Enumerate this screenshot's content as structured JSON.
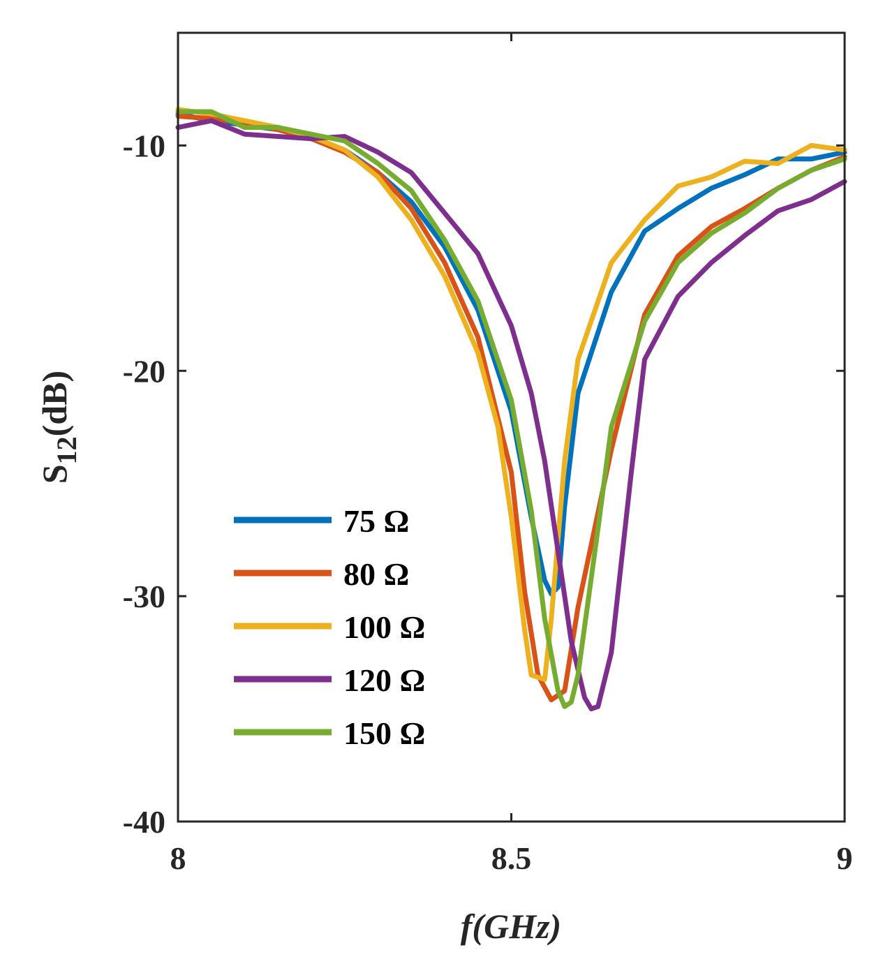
{
  "chart_data": {
    "type": "line",
    "xlabel": "f(GHz)",
    "ylabel": {
      "main": "S",
      "sub": "12",
      "unit": "(dB)"
    },
    "xlim": [
      8,
      9
    ],
    "ylim": [
      -40,
      -5
    ],
    "xticks": [
      8,
      8.5,
      9
    ],
    "xtick_labels": [
      "8",
      "8.5",
      "9"
    ],
    "yticks": [
      -10,
      -20,
      -30,
      -40
    ],
    "ytick_labels": [
      "-10",
      "-20",
      "-30",
      "-40"
    ],
    "grid": false,
    "legend_position": "lower-left",
    "series": [
      {
        "name": "75 Ω",
        "color": "#0072BD",
        "x": [
          8.0,
          8.05,
          8.1,
          8.15,
          8.2,
          8.25,
          8.3,
          8.35,
          8.4,
          8.45,
          8.5,
          8.53,
          8.55,
          8.56,
          8.57,
          8.58,
          8.6,
          8.65,
          8.7,
          8.75,
          8.8,
          8.85,
          8.9,
          8.95,
          9.0
        ],
        "y": [
          -8.6,
          -8.9,
          -9.1,
          -9.3,
          -9.7,
          -10.2,
          -11.2,
          -12.5,
          -14.5,
          -17.3,
          -21.8,
          -26.5,
          -29.3,
          -29.9,
          -29.6,
          -26.0,
          -21.0,
          -16.5,
          -13.8,
          -12.8,
          -11.9,
          -11.3,
          -10.6,
          -10.6,
          -10.3
        ]
      },
      {
        "name": "80 Ω",
        "color": "#D95319",
        "x": [
          8.0,
          8.05,
          8.1,
          8.15,
          8.2,
          8.25,
          8.3,
          8.35,
          8.4,
          8.45,
          8.5,
          8.52,
          8.54,
          8.56,
          8.58,
          8.6,
          8.65,
          8.7,
          8.75,
          8.8,
          8.85,
          8.9,
          8.95,
          9.0
        ],
        "y": [
          -8.7,
          -8.8,
          -9.0,
          -9.3,
          -9.7,
          -10.3,
          -11.2,
          -12.8,
          -15.2,
          -18.5,
          -24.5,
          -29.8,
          -33.5,
          -34.6,
          -34.2,
          -30.5,
          -23.5,
          -17.5,
          -14.9,
          -13.6,
          -12.8,
          -11.9,
          -11.1,
          -10.5
        ]
      },
      {
        "name": "100 Ω",
        "color": "#EDB120",
        "x": [
          8.0,
          8.05,
          8.1,
          8.15,
          8.2,
          8.25,
          8.3,
          8.35,
          8.4,
          8.45,
          8.48,
          8.5,
          8.52,
          8.53,
          8.55,
          8.56,
          8.58,
          8.6,
          8.65,
          8.7,
          8.75,
          8.8,
          8.85,
          8.9,
          8.95,
          9.0
        ],
        "y": [
          -8.4,
          -8.6,
          -8.9,
          -9.2,
          -9.6,
          -10.2,
          -11.4,
          -13.3,
          -15.8,
          -19.2,
          -22.5,
          -26.5,
          -31.5,
          -33.5,
          -33.7,
          -31.0,
          -24.0,
          -19.5,
          -15.2,
          -13.3,
          -11.8,
          -11.4,
          -10.7,
          -10.8,
          -10.0,
          -10.2
        ]
      },
      {
        "name": "120 Ω",
        "color": "#7E2F8E",
        "x": [
          8.0,
          8.05,
          8.1,
          8.15,
          8.2,
          8.25,
          8.3,
          8.35,
          8.4,
          8.45,
          8.5,
          8.53,
          8.55,
          8.57,
          8.59,
          8.61,
          8.62,
          8.63,
          8.65,
          8.68,
          8.7,
          8.75,
          8.8,
          8.85,
          8.9,
          8.95,
          9.0
        ],
        "y": [
          -9.2,
          -8.9,
          -9.5,
          -9.6,
          -9.7,
          -9.6,
          -10.3,
          -11.2,
          -13.0,
          -14.8,
          -18.0,
          -21.0,
          -24.0,
          -28.0,
          -32.0,
          -34.5,
          -35.0,
          -34.9,
          -32.5,
          -24.5,
          -19.5,
          -16.7,
          -15.2,
          -14.0,
          -12.9,
          -12.4,
          -11.6
        ]
      },
      {
        "name": "150 Ω",
        "color": "#77AC30",
        "x": [
          8.0,
          8.05,
          8.1,
          8.15,
          8.2,
          8.25,
          8.3,
          8.35,
          8.4,
          8.45,
          8.5,
          8.53,
          8.55,
          8.57,
          8.58,
          8.59,
          8.6,
          8.63,
          8.65,
          8.7,
          8.75,
          8.8,
          8.85,
          8.9,
          8.95,
          9.0
        ],
        "y": [
          -8.5,
          -8.5,
          -9.2,
          -9.2,
          -9.5,
          -9.8,
          -10.8,
          -12.0,
          -14.2,
          -16.9,
          -21.3,
          -26.2,
          -31.0,
          -34.2,
          -34.9,
          -34.7,
          -33.5,
          -27.0,
          -22.5,
          -17.8,
          -15.2,
          -13.9,
          -13.0,
          -11.9,
          -11.1,
          -10.6
        ]
      }
    ]
  }
}
